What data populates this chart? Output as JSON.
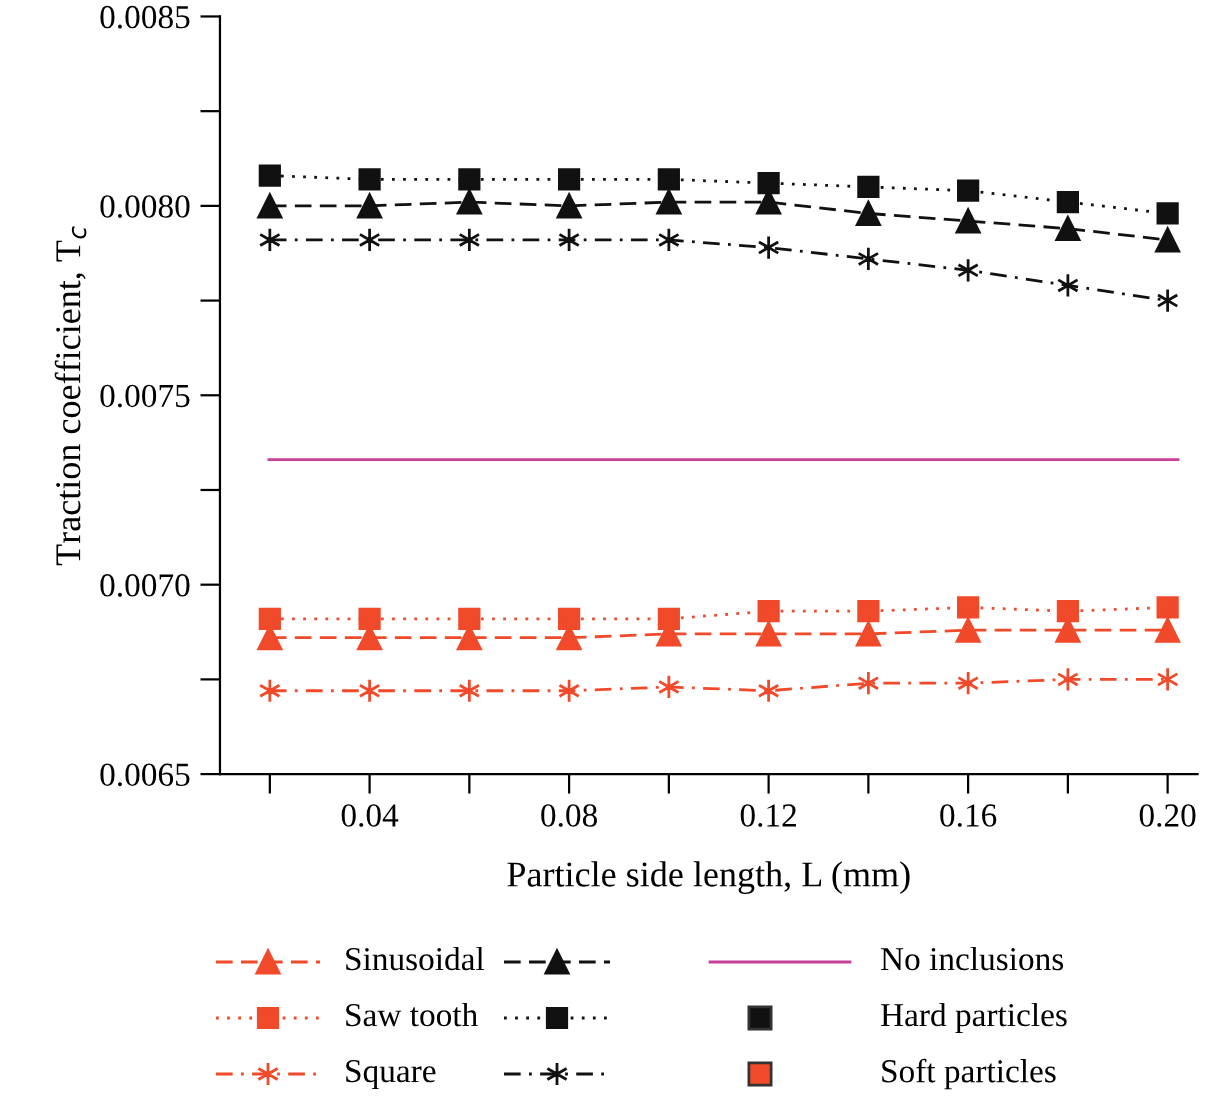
{
  "chart_data": {
    "type": "line",
    "xlabel": "Particle side length, L (mm)",
    "ylabel": "Traction coefficient, T$_{c}$",
    "x": [
      0.02,
      0.04,
      0.06,
      0.08,
      0.1,
      0.12,
      0.14,
      0.16,
      0.18,
      0.2
    ],
    "series": [
      {
        "name": "Sinusoidal",
        "color": "#f04a2a",
        "marker": "triangle",
        "line_style": "dashed",
        "values": [
          0.00686,
          0.00686,
          0.00686,
          0.00686,
          0.00687,
          0.00687,
          0.00687,
          0.00688,
          0.00688,
          0.00688
        ]
      },
      {
        "color": "#111111",
        "marker": "triangle",
        "line_style": "dashed",
        "values": [
          0.008,
          0.008,
          0.00801,
          0.008,
          0.00801,
          0.00801,
          0.00798,
          0.00796,
          0.00794,
          0.00791
        ]
      },
      {
        "name": "Saw tooth",
        "color": "#f04a2a",
        "marker": "square",
        "line_style": "dotted",
        "values": [
          0.00691,
          0.00691,
          0.00691,
          0.00691,
          0.00691,
          0.00693,
          0.00693,
          0.00694,
          0.00693,
          0.00694
        ]
      },
      {
        "color": "#111111",
        "marker": "square",
        "line_style": "dotted",
        "values": [
          0.00808,
          0.00807,
          0.00807,
          0.00807,
          0.00807,
          0.00806,
          0.00805,
          0.00804,
          0.00801,
          0.00798
        ]
      },
      {
        "name": "Square",
        "color": "#f04a2a",
        "marker": "cross",
        "line_style": "dashdot",
        "values": [
          0.00672,
          0.00672,
          0.00672,
          0.00672,
          0.00673,
          0.00672,
          0.00674,
          0.00674,
          0.00675,
          0.00675
        ]
      },
      {
        "color": "#111111",
        "marker": "cross",
        "line_style": "dashdot",
        "values": [
          0.00791,
          0.00791,
          0.00791,
          0.00791,
          0.00791,
          0.00789,
          0.00786,
          0.00783,
          0.00779,
          0.00775
        ]
      }
    ],
    "ref_lines": [
      {
        "axis": "y",
        "value": 0.00733,
        "label": "No inclusions",
        "color": "#c8409a"
      }
    ],
    "annotations": [
      "Hard particles",
      "Soft particles"
    ],
    "xlim": [
      0.01,
      0.206
    ],
    "ylim": [
      0.0065,
      0.0085
    ],
    "xticks": [
      {
        "value": 0.02,
        "label": null
      },
      {
        "value": 0.04,
        "label": "0.04"
      },
      {
        "value": 0.06,
        "label": null
      },
      {
        "value": 0.08,
        "label": "0.08"
      },
      {
        "value": 0.1,
        "label": null
      },
      {
        "value": 0.12,
        "label": "0.12"
      },
      {
        "value": 0.14,
        "label": null
      },
      {
        "value": 0.16,
        "label": "0.16"
      },
      {
        "value": 0.18,
        "label": null
      },
      {
        "value": 0.2,
        "label": "0.20"
      }
    ],
    "yticks": [
      {
        "value": 0.0065,
        "label": "0.0065"
      },
      {
        "value": 0.00675,
        "label": null
      },
      {
        "value": 0.007,
        "label": "0.0070"
      },
      {
        "value": 0.00725,
        "label": null
      },
      {
        "value": 0.0075,
        "label": "0.0075"
      },
      {
        "value": 0.00775,
        "label": null
      },
      {
        "value": 0.008,
        "label": "0.0080"
      },
      {
        "value": 0.00825,
        "label": null
      },
      {
        "value": 0.0085,
        "label": "0.0085"
      }
    ],
    "grid": false,
    "legend": "bottom"
  }
}
